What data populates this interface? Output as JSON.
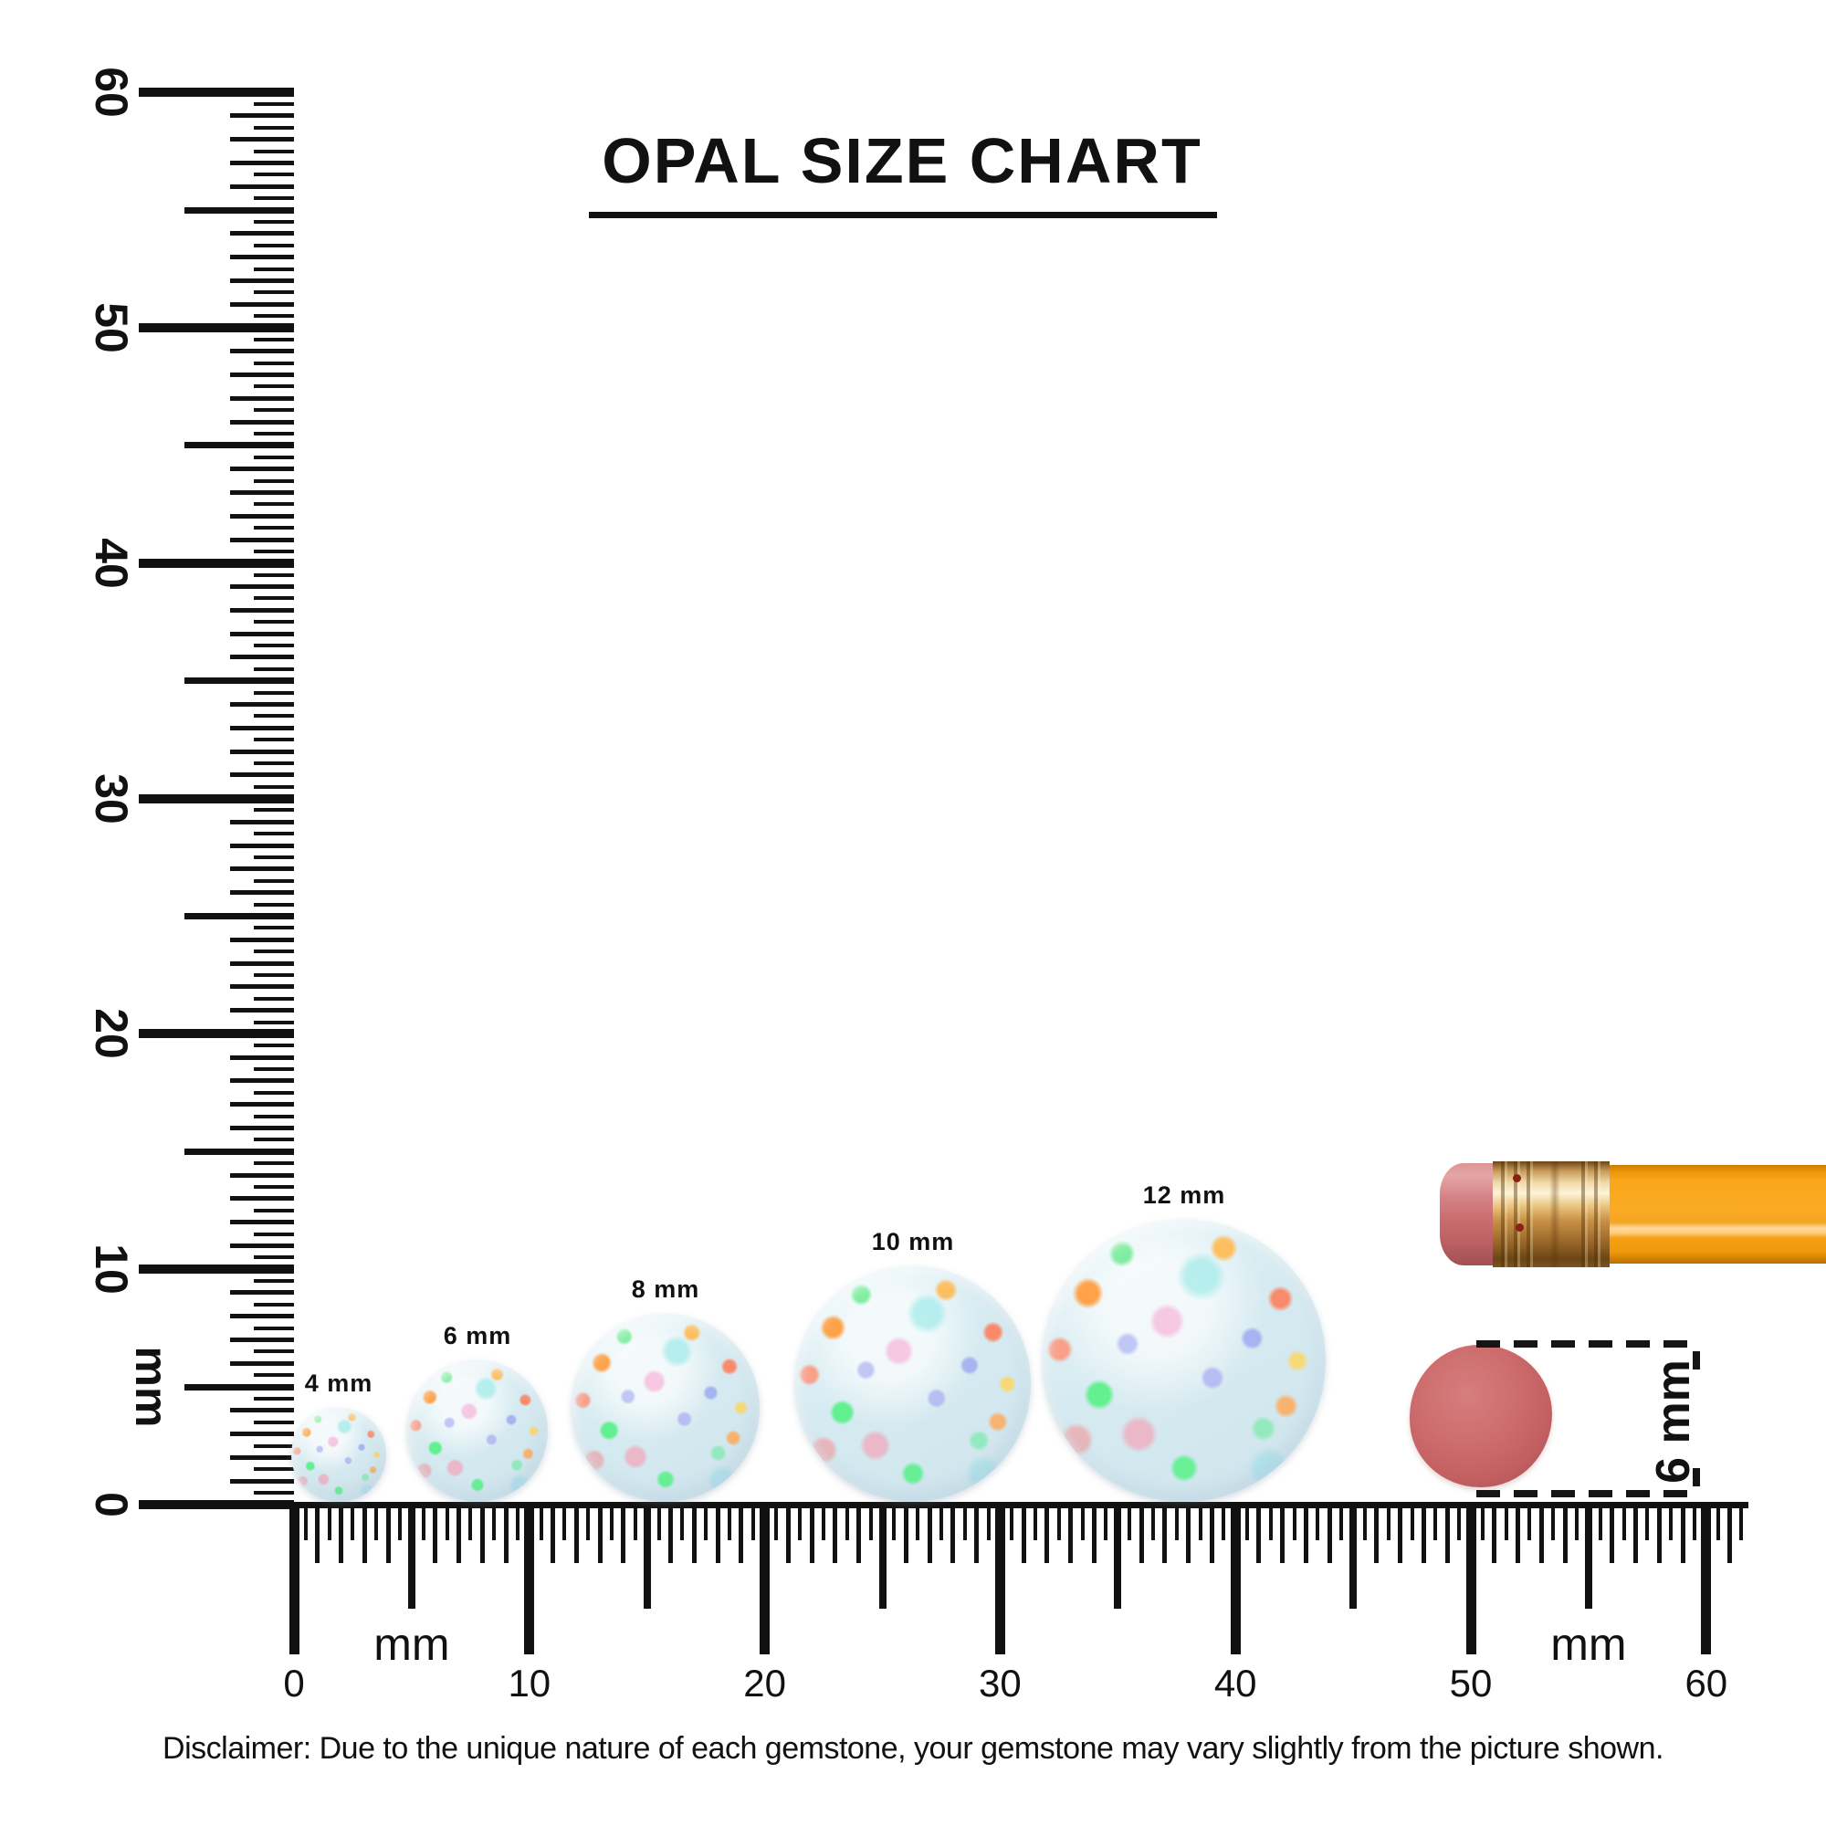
{
  "title": "OPAL SIZE CHART",
  "rulers": {
    "unit": "mm",
    "vertical": {
      "tick_numbers": [
        0,
        10,
        20,
        30,
        40,
        50,
        60
      ]
    },
    "horizontal": {
      "tick_numbers": [
        0,
        10,
        20,
        30,
        40,
        50,
        60
      ]
    }
  },
  "stones": [
    {
      "label": "4 mm",
      "size_mm": 4
    },
    {
      "label": "6 mm",
      "size_mm": 6
    },
    {
      "label": "8 mm",
      "size_mm": 8
    },
    {
      "label": "10 mm",
      "size_mm": 10
    },
    {
      "label": "12 mm",
      "size_mm": 12
    }
  ],
  "reference": {
    "dot_label": "6 mm",
    "dot_size_mm": 6
  },
  "disclaimer": "Disclaimer: Due to the unique nature of each gemstone, your gemstone may vary slightly from the picture shown.",
  "colors": {
    "ink": "#111111",
    "pencil_body_orange": "#f9a71c",
    "pencil_eraser_pink": "#ca6d70",
    "ferrule_gold": "#d9a254",
    "eraser_dot_red": "#c86566",
    "opal_base": "#d8ecf2"
  }
}
